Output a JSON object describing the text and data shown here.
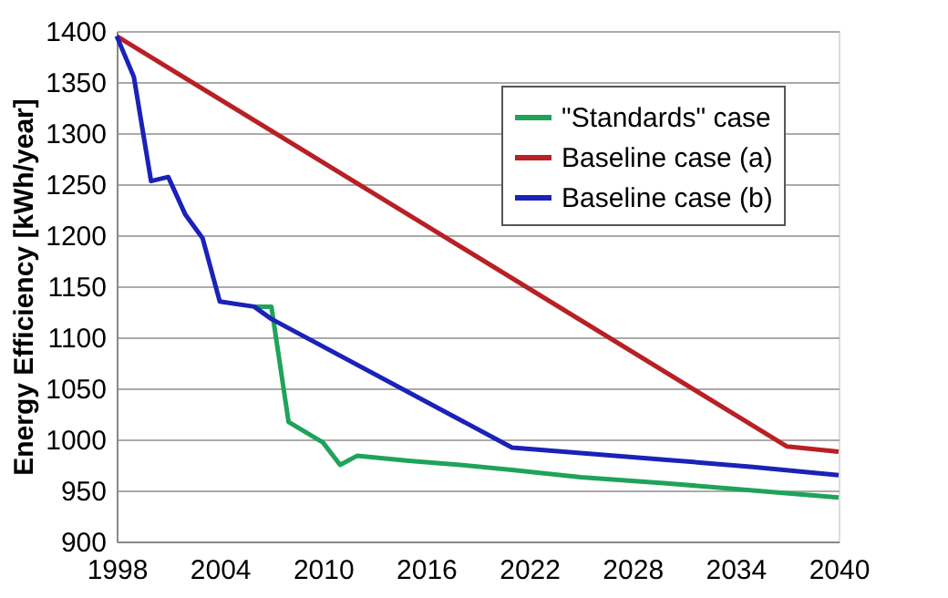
{
  "chart_data": {
    "type": "line",
    "ylabel": "Energy Efficiency [kWh/year]",
    "xlim": [
      1998,
      2040
    ],
    "xticks": [
      1998,
      2004,
      2010,
      2016,
      2022,
      2028,
      2034,
      2040
    ],
    "ylim": [
      900,
      1400
    ],
    "yticks": [
      900,
      950,
      1000,
      1050,
      1100,
      1150,
      1200,
      1250,
      1300,
      1350,
      1400
    ],
    "grid": "y",
    "legend": "top right",
    "marker": "none",
    "line_style": "solid",
    "series": [
      {
        "name": "\"Standards\" case",
        "color": "#1fa35a",
        "x": [
          2006,
          2007,
          2008,
          2010,
          2011,
          2012,
          2015,
          2018,
          2021,
          2025,
          2030,
          2035,
          2040
        ],
        "values": [
          1130,
          1130,
          1017,
          997,
          975,
          984,
          979,
          975,
          970,
          963,
          957,
          950,
          943
        ]
      },
      {
        "name": "Baseline case (a)",
        "color": "#b82025",
        "x": [
          1998,
          2037,
          2040
        ],
        "values": [
          1395,
          993,
          988
        ]
      },
      {
        "name": "Baseline case (b)",
        "color": "#1a22b8",
        "x": [
          1998,
          1999,
          2000,
          2001,
          2002,
          2003,
          2004,
          2006,
          2007,
          2021,
          2030,
          2035,
          2040
        ],
        "values": [
          1395,
          1355,
          1253,
          1257,
          1220,
          1197,
          1135,
          1130,
          1118,
          992,
          980,
          973,
          965
        ]
      }
    ]
  }
}
